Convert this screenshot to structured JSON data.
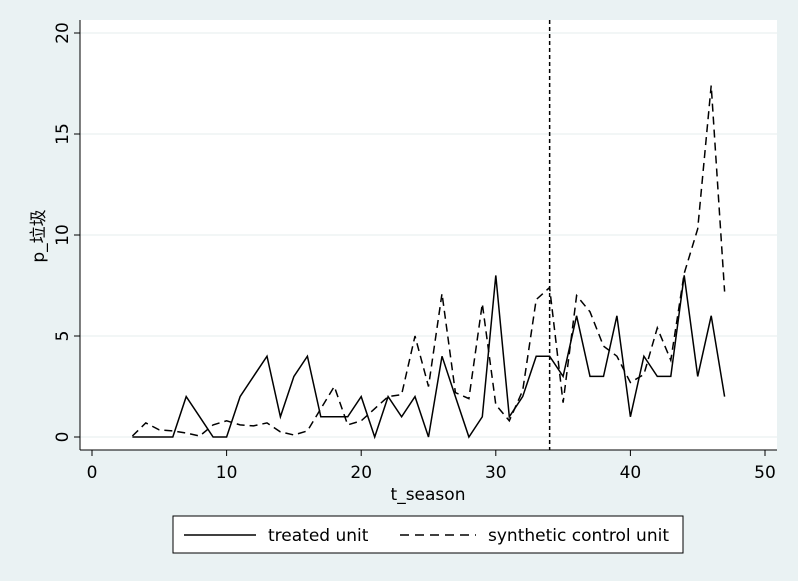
{
  "chart_data": {
    "type": "line",
    "xlabel": "t_season",
    "ylabel": "p_垃圾",
    "xlim": [
      0,
      50
    ],
    "ylim": [
      0,
      20
    ],
    "xticks": [
      0,
      10,
      20,
      30,
      40,
      50
    ],
    "yticks": [
      0,
      5,
      10,
      15,
      20
    ],
    "grid": "horizontal",
    "legend_position": "bottom",
    "treatment_line_x": 34,
    "x": [
      3,
      4,
      5,
      6,
      7,
      8,
      9,
      10,
      11,
      12,
      13,
      14,
      15,
      16,
      17,
      18,
      19,
      20,
      21,
      22,
      23,
      24,
      25,
      26,
      27,
      28,
      29,
      30,
      31,
      32,
      33,
      34,
      35,
      36,
      37,
      38,
      39,
      40,
      41,
      42,
      43,
      44,
      45,
      46,
      47
    ],
    "series": [
      {
        "name": "treated unit",
        "style": "solid",
        "values": [
          0,
          0,
          0,
          0,
          2,
          1,
          0,
          0,
          2,
          3,
          4,
          1,
          3,
          4,
          1,
          1,
          1,
          2,
          0,
          2,
          1,
          2,
          0,
          4,
          2,
          0,
          1,
          8,
          1,
          2,
          4,
          4,
          3,
          6,
          3,
          3,
          6,
          1,
          4,
          3,
          3,
          8,
          3,
          6,
          2
        ]
      },
      {
        "name": "synthetic control unit",
        "style": "dashed",
        "values": [
          0.05,
          0.7,
          0.35,
          0.3,
          0.2,
          0.05,
          0.6,
          0.8,
          0.6,
          0.55,
          0.7,
          0.25,
          0.1,
          0.3,
          1.4,
          2.5,
          0.6,
          0.8,
          1.4,
          2.0,
          2.1,
          5.0,
          2.5,
          7.1,
          2.2,
          1.9,
          6.6,
          1.6,
          0.8,
          2.3,
          6.8,
          7.4,
          1.7,
          7.0,
          6.2,
          4.5,
          4.0,
          2.7,
          3.1,
          5.4,
          3.8,
          8.1,
          10.3,
          17.4,
          7.2
        ]
      }
    ]
  }
}
